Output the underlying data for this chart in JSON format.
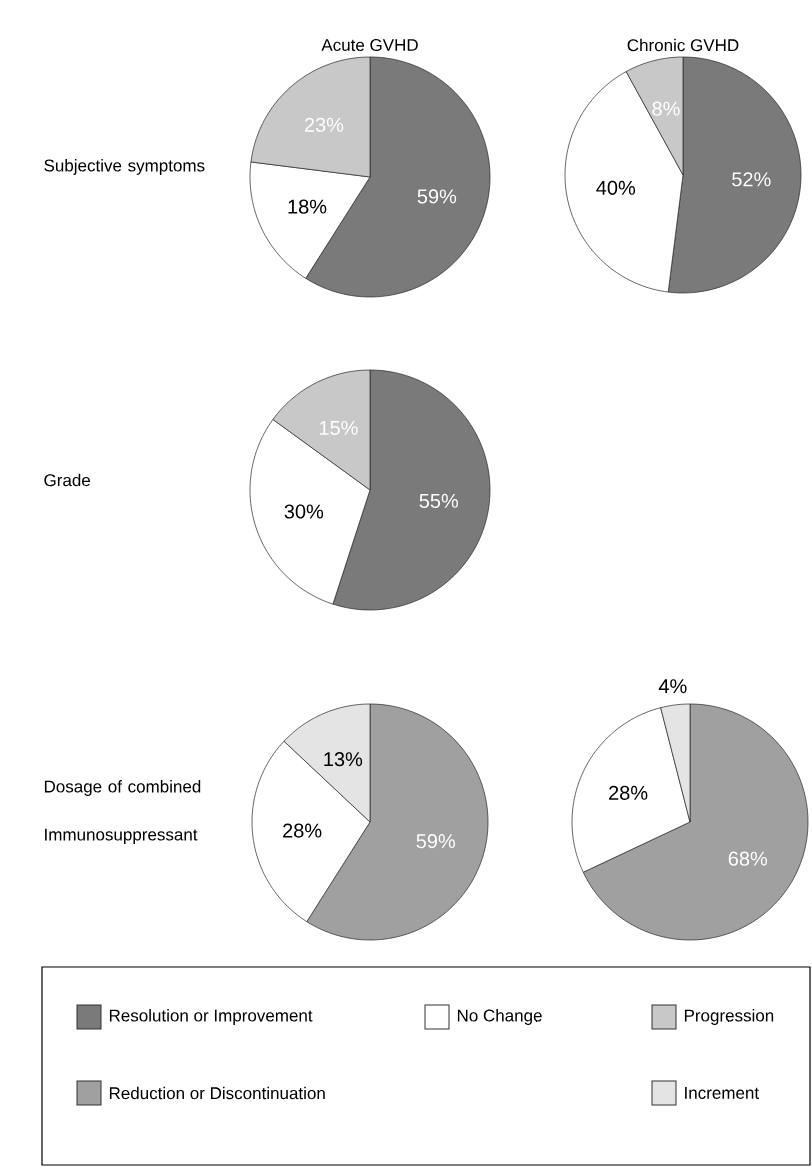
{
  "chart_data": [
    {
      "type": "pie",
      "title": "Acute GVHD",
      "ylabel": "Subjective symptoms",
      "categories": [
        "Resolution or Improvement",
        "No Change",
        "Progression"
      ],
      "values": [
        59,
        18,
        23
      ],
      "value_labels": [
        "59%",
        "18%",
        "23%"
      ],
      "colors": [
        "#7a7a7a",
        "#ffffff",
        "#c8c8c8"
      ],
      "legend": "bottom"
    },
    {
      "type": "pie",
      "title": "Chronic GVHD",
      "values": [
        52,
        40,
        8
      ],
      "value_labels": [
        "52%",
        "40%",
        "8%"
      ],
      "colors": [
        "#7a7a7a",
        "#ffffff",
        "#c8c8c8"
      ]
    },
    {
      "type": "pie",
      "ylabel": "Grade",
      "values": [
        55,
        30,
        15
      ],
      "value_labels": [
        "55%",
        "30%",
        "15%"
      ],
      "colors": [
        "#7a7a7a",
        "#ffffff",
        "#c8c8c8"
      ]
    },
    {
      "type": "pie",
      "ylabel": "Dosage of combined Immunosuppressant",
      "categories": [
        "Reduction or Discontinuation",
        null,
        "Increment"
      ],
      "values": [
        59,
        28,
        13
      ],
      "value_labels": [
        "59%",
        "28%",
        "13%"
      ],
      "colors": [
        "#a0a0a0",
        "#ffffff",
        "#e4e4e4"
      ],
      "legend": "bottom"
    },
    {
      "type": "pie",
      "values": [
        68,
        28,
        4
      ],
      "value_labels": [
        "68%",
        "28%",
        "4%"
      ],
      "colors": [
        "#a0a0a0",
        "#ffffff",
        "#e4e4e4"
      ]
    }
  ]
}
